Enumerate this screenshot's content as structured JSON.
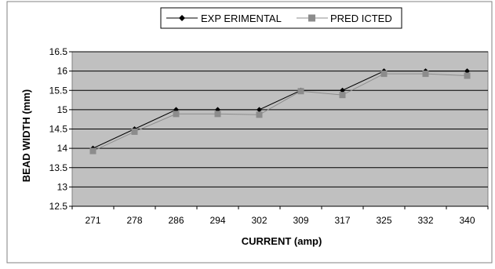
{
  "chart_data": {
    "type": "line",
    "categories": [
      "271",
      "278",
      "286",
      "294",
      "302",
      "309",
      "317",
      "325",
      "332",
      "340"
    ],
    "series": [
      {
        "name": "EXP ERIMENTAL",
        "values": [
          14.0,
          14.5,
          15.0,
          15.0,
          15.0,
          15.5,
          15.5,
          16.0,
          16.0,
          16.0
        ],
        "color": "#000000",
        "marker": "diamond"
      },
      {
        "name": "PRED ICTED",
        "values": [
          13.93,
          14.43,
          14.89,
          14.89,
          14.87,
          15.48,
          15.38,
          15.93,
          15.93,
          15.88
        ],
        "color": "#8c8c8c",
        "marker": "square"
      }
    ],
    "xlabel": "CURRENT (amp)",
    "ylabel": "BEAD WIDTH (mm)",
    "ylim": [
      12.5,
      16.5
    ],
    "yticks": [
      "12.5",
      "13",
      "13.5",
      "14",
      "14.5",
      "15",
      "15.5",
      "16",
      "16.5"
    ],
    "grid": true,
    "legend_position": "top",
    "colors": {
      "plot_background": "#c0c0c0",
      "gridline": "#000000",
      "frame": "#808080"
    }
  }
}
